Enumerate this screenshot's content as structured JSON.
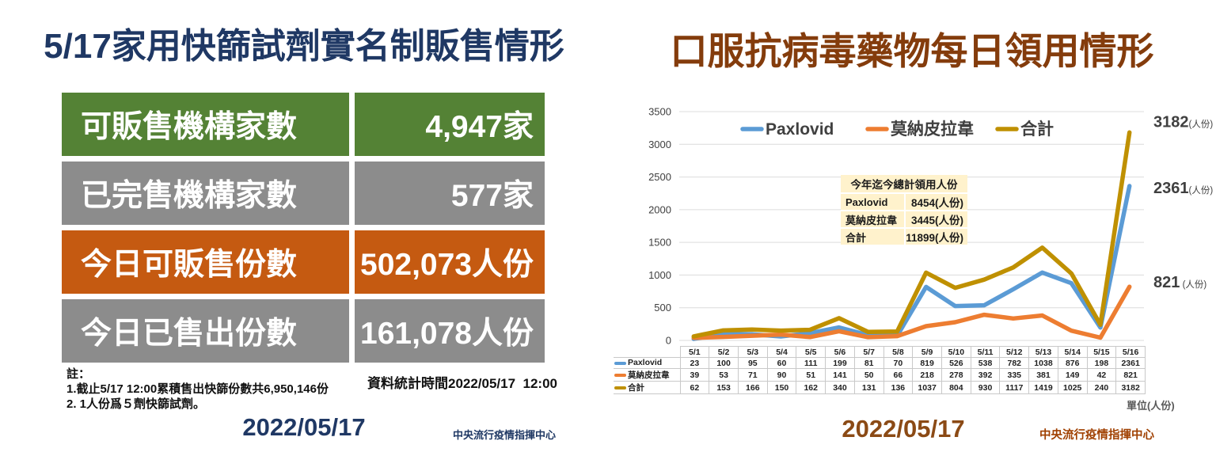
{
  "left_panel": {
    "title": "5/17家用快篩試劑實名制販售情形",
    "table": {
      "rows": [
        {
          "label": "可販售機構家數",
          "value": "4,947家",
          "color": "#548235"
        },
        {
          "label": "已完售機構家數",
          "value": "577家",
          "color": "#8C8C8C"
        },
        {
          "label": "今日可販售份數",
          "value": "502,073人份",
          "color": "#C55A11"
        },
        {
          "label": "今日已售出份數",
          "value": "161,078人份",
          "color": "#8C8C8C"
        }
      ]
    },
    "notes": {
      "heading": "註：",
      "line1": "1.截止5/17 12:00累積售出快篩份數共6,950,146份",
      "line2": "2. 1人份爲５劑快篩試劑。"
    },
    "stats_time": "資料統計時間2022/05/17  12:00",
    "date": "2022/05/17",
    "agency": "中央流行疫情指揮中心"
  },
  "right_panel": {
    "title": "口服抗病毒藥物每日領用情形",
    "summary_table": {
      "title": "今年迄今總計領用人份",
      "rows": [
        {
          "label": "Paxlovid",
          "value": "8454(人份)"
        },
        {
          "label": "莫納皮拉韋",
          "value": "3445(人份)"
        },
        {
          "label": "合計",
          "value": "11899(人份)"
        }
      ]
    },
    "unit_label": "單位(人份)",
    "date": "2022/05/17",
    "agency": "中央流行疫情指揮中心"
  },
  "chart_data": {
    "type": "line",
    "title": "口服抗病毒藥物每日領用情形",
    "categories": [
      "5/1",
      "5/2",
      "5/3",
      "5/4",
      "5/5",
      "5/6",
      "5/7",
      "5/8",
      "5/9",
      "5/10",
      "5/11",
      "5/12",
      "5/13",
      "5/14",
      "5/15",
      "5/16"
    ],
    "series": [
      {
        "name": "Paxlovid",
        "color": "#5B9BD5",
        "values": [
          23,
          100,
          95,
          60,
          111,
          199,
          81,
          70,
          819,
          526,
          538,
          782,
          1038,
          876,
          198,
          2361
        ],
        "end_label": "2361",
        "end_label_unit": "(人份)"
      },
      {
        "name": "莫納皮拉韋",
        "color": "#ED7D31",
        "values": [
          39,
          53,
          71,
          90,
          51,
          141,
          50,
          66,
          218,
          278,
          392,
          335,
          381,
          149,
          42,
          821
        ],
        "end_label": "821",
        "end_label_unit": " (人份)"
      },
      {
        "name": "合計",
        "color": "#BF9000",
        "values": [
          62,
          153,
          166,
          150,
          162,
          340,
          131,
          136,
          1037,
          804,
          930,
          1117,
          1419,
          1025,
          240,
          3182
        ],
        "end_label": "3182",
        "end_label_unit": "(人份)"
      }
    ],
    "ylim": [
      0,
      3500
    ],
    "ytick_step": 500,
    "grid": true,
    "legend_position": "top",
    "axis_text_color": "#404040",
    "grid_color": "#DCDCDC"
  }
}
